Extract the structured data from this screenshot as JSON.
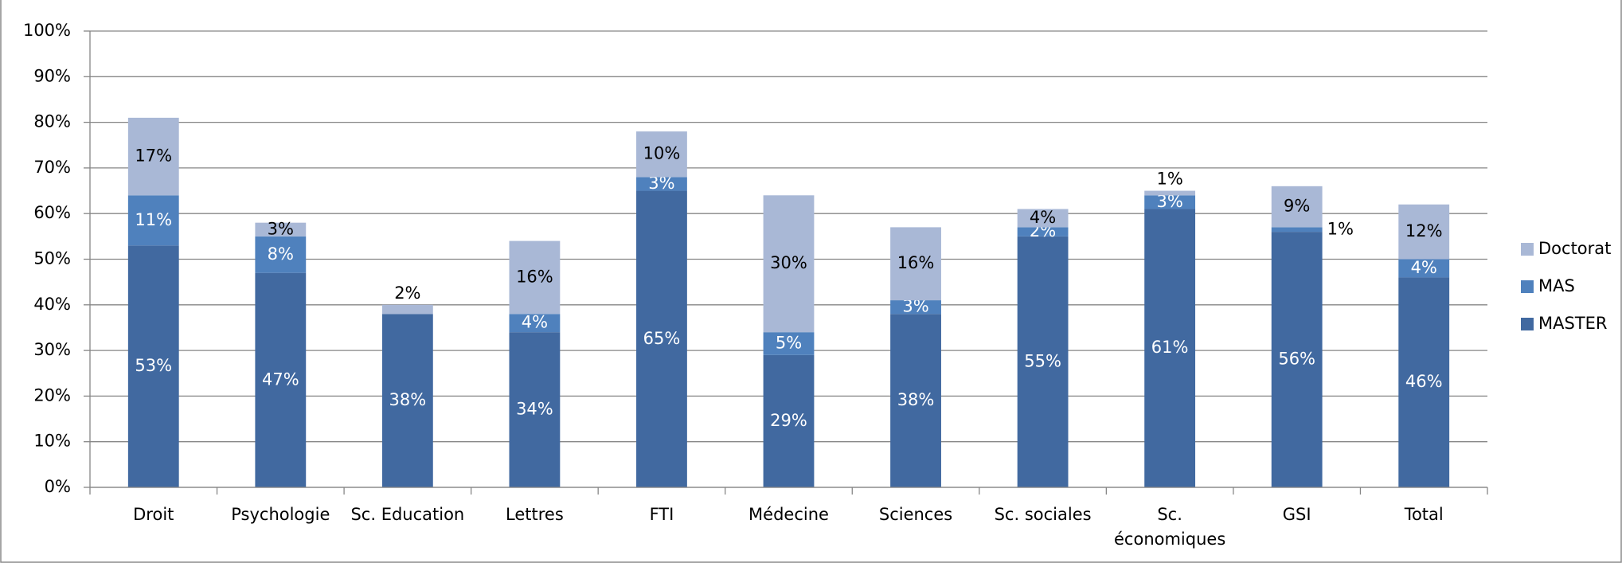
{
  "chart_data": {
    "type": "stacked_bar",
    "categories": [
      "Droit",
      "Psychologie",
      "Sc. Education",
      "Lettres",
      "FTI",
      "Médecine",
      "Sciences",
      "Sc. sociales",
      "Sc. économiques",
      "GSI",
      "Total"
    ],
    "series": [
      {
        "name": "MASTER",
        "color": "#4169a0",
        "values": [
          53,
          47,
          38,
          34,
          65,
          29,
          38,
          55,
          61,
          56,
          46
        ],
        "value_labels": [
          "53%",
          "47%",
          "38%",
          "34%",
          "65%",
          "29%",
          "38%",
          "55%",
          "61%",
          "56%",
          "46%"
        ]
      },
      {
        "name": "MAS",
        "color": "#4f81bd",
        "values": [
          11,
          8,
          null,
          4,
          3,
          5,
          3,
          2,
          3,
          1,
          4
        ],
        "value_labels": [
          "11%",
          "8%",
          null,
          "4%",
          "3%",
          "5%",
          "3%",
          "2%",
          "3%",
          "1%",
          "4%"
        ]
      },
      {
        "name": "Doctorat",
        "color": "#a9b8d6",
        "values": [
          17,
          3,
          2,
          16,
          10,
          30,
          16,
          4,
          1,
          9,
          12
        ],
        "value_labels": [
          "17%",
          "3%",
          "2%",
          "16%",
          "10%",
          "30%",
          "16%",
          "4%",
          "1%",
          "9%",
          "12%"
        ]
      }
    ],
    "ylim": [
      0,
      100
    ],
    "yticks": [
      {
        "value": 0,
        "label": "0%"
      },
      {
        "value": 10,
        "label": "10%"
      },
      {
        "value": 20,
        "label": "20%"
      },
      {
        "value": 30,
        "label": "30%"
      },
      {
        "value": 40,
        "label": "40%"
      },
      {
        "value": 50,
        "label": "50%"
      },
      {
        "value": 60,
        "label": "60%"
      },
      {
        "value": 70,
        "label": "70%"
      },
      {
        "value": 80,
        "label": "80%"
      },
      {
        "value": 90,
        "label": "90%"
      },
      {
        "value": 100,
        "label": "100%"
      }
    ],
    "grid": true,
    "legend": "right"
  }
}
